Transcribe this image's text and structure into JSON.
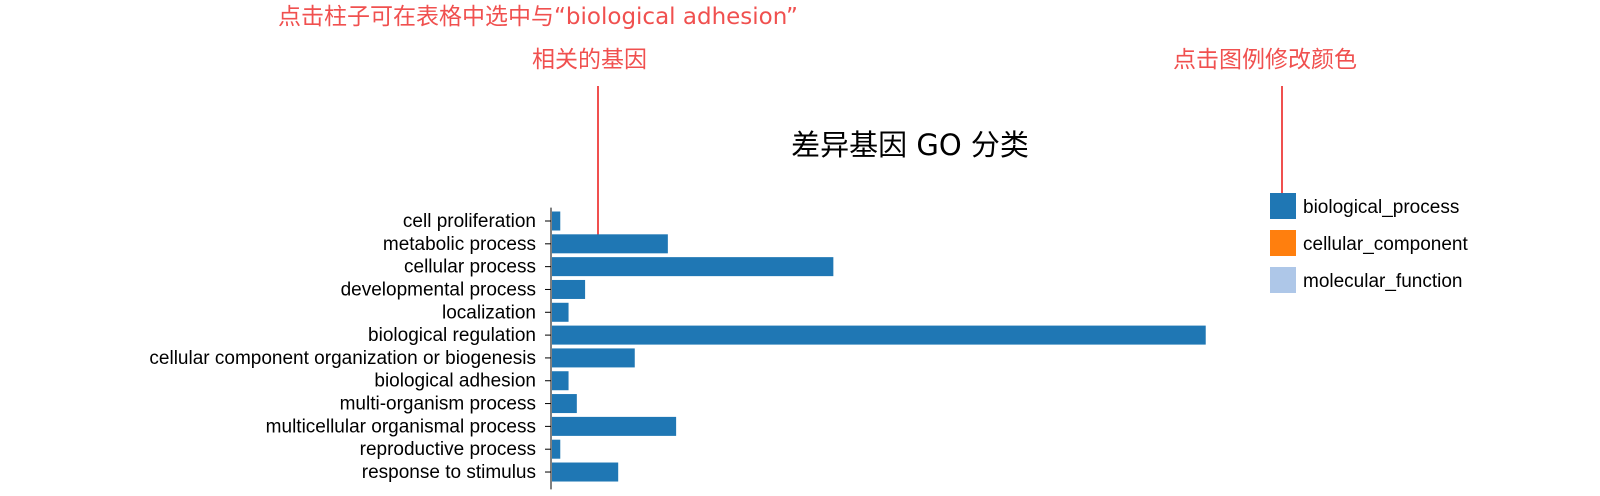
{
  "annotations": {
    "bar_hint_line1": "点击柱子可在表格中选中与“biological adhesion”",
    "bar_hint_line2": "相关的基因",
    "legend_hint": "点击图例修改颜色"
  },
  "colors": {
    "annotation": "#f0504f"
  },
  "chart_data": {
    "type": "bar",
    "orientation": "horizontal",
    "title": "差异基因 GO 分类",
    "xlabel": "",
    "ylabel": "",
    "categories": [
      "cell proliferation",
      "metabolic process",
      "cellular process",
      "developmental process",
      "localization",
      "biological regulation",
      "cellular component organization or biogenesis",
      "biological adhesion",
      "multi-organism process",
      "multicellular organismal process",
      "reproductive process",
      "response to stimulus"
    ],
    "series": [
      {
        "name": "biological_process",
        "color": "#1f77b4",
        "values": [
          1,
          14,
          34,
          4,
          2,
          79,
          10,
          2,
          3,
          15,
          1,
          8
        ]
      }
    ],
    "xlim": [
      0,
      80
    ],
    "grid": false,
    "legend": {
      "position": "right",
      "entries": [
        {
          "label": "biological_process",
          "color": "#1f77b4"
        },
        {
          "label": "cellular_component",
          "color": "#ff7f0e"
        },
        {
          "label": "molecular_function",
          "color": "#aec7e8"
        }
      ]
    }
  }
}
